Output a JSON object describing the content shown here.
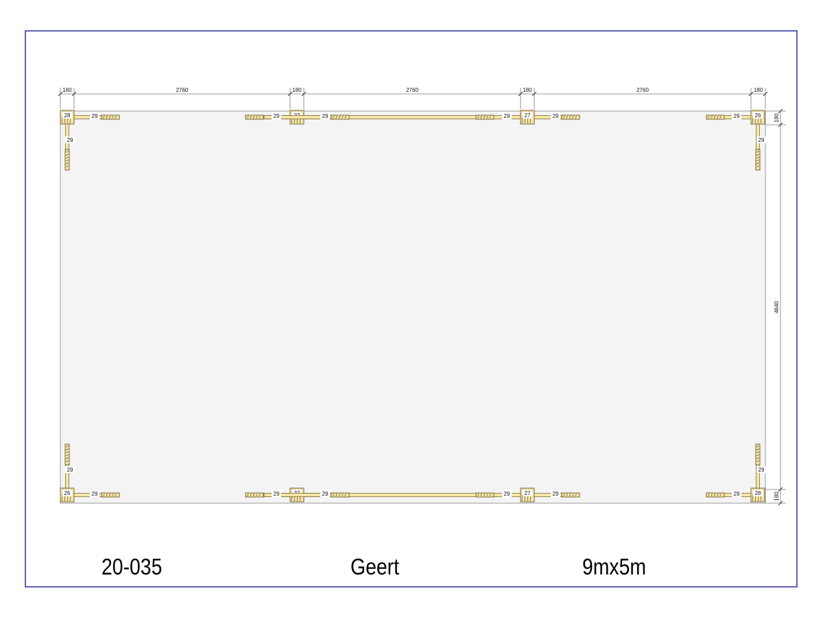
{
  "drawing": {
    "dimensions": {
      "top": [
        "180",
        "2760",
        "180",
        "2760",
        "180",
        "2760",
        "180"
      ],
      "right": [
        "180",
        "4640",
        "180"
      ]
    },
    "corner_labels": {
      "top_left": "28",
      "top_right": "26",
      "bottom_left": "26",
      "bottom_right": "28"
    },
    "mid_post_label": "27",
    "beam_label": "29"
  },
  "footer": {
    "project_number": "20-035",
    "client_name": "Geert",
    "size": "9mx5m"
  },
  "colors": {
    "border": "#2b2b9e",
    "floor": "#f4f4f4",
    "wood": "#f5e6a8",
    "wood_stroke": "#6b5a2a",
    "line": "#555555"
  }
}
